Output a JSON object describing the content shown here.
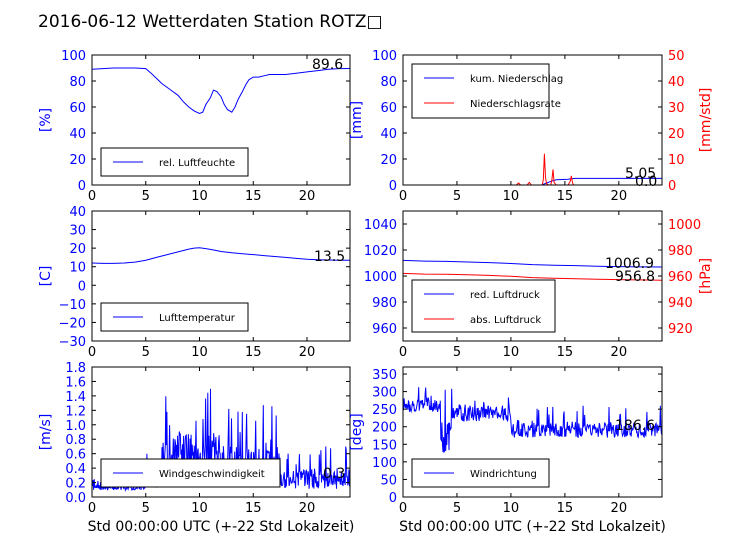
{
  "page_title": "2016-06-12 Wetterdaten Station ROTZ□",
  "colors": {
    "blue": "#0000ff",
    "red": "#ff0000",
    "black": "#000000",
    "legend_border": "#000000"
  },
  "chart_data": [
    {
      "type": "line",
      "ylabel": "[%]",
      "ylim": [
        0,
        100
      ],
      "yticks": [
        "0",
        "20",
        "40",
        "60",
        "80",
        "100"
      ],
      "xlim": [
        0,
        24
      ],
      "xticks": [
        "0",
        "5",
        "10",
        "15",
        "20"
      ],
      "xlabel": "",
      "last_value": "89.6",
      "legend_position": "lower-left",
      "series": [
        {
          "name": "rel. Luftfeuchte",
          "color": "#0000ff",
          "x": [
            0,
            1,
            2,
            3,
            4,
            5,
            5.5,
            6,
            6.5,
            7,
            7.5,
            8,
            8.5,
            9,
            9.5,
            10,
            10.3,
            10.6,
            11,
            11.3,
            11.6,
            12,
            12.3,
            12.6,
            13,
            13.3,
            13.6,
            14,
            14.3,
            14.6,
            15,
            15.5,
            16,
            16.5,
            17,
            18,
            19,
            20,
            21,
            22,
            23,
            24
          ],
          "y": [
            89,
            89.5,
            90,
            90,
            90,
            89.5,
            86,
            82,
            78,
            75,
            72,
            69,
            64,
            60,
            57,
            55,
            56,
            62,
            67,
            73,
            72,
            68,
            62,
            58,
            56,
            60,
            66,
            72,
            77,
            81,
            83,
            83,
            84,
            85,
            85,
            85,
            86,
            87,
            88,
            89,
            89.5,
            89.6
          ]
        }
      ]
    },
    {
      "type": "line",
      "ylabel": "[mm]",
      "ylabel_right": "[mm/std]",
      "ylim": [
        0,
        100
      ],
      "ylim_right": [
        0,
        50
      ],
      "yticks": [
        "0",
        "20",
        "40",
        "60",
        "80",
        "100"
      ],
      "yticks_right": [
        "0",
        "10",
        "20",
        "30",
        "40",
        "50"
      ],
      "xlim": [
        0,
        24
      ],
      "xticks": [
        "0",
        "5",
        "10",
        "15",
        "20"
      ],
      "xlabel": "",
      "last_value": "5.05",
      "last_value_right": "0.0",
      "legend_position": "upper-left",
      "series": [
        {
          "name": "kum. Niederschlag",
          "color": "#0000ff",
          "axis": "left",
          "x": [
            0,
            12.9,
            13.0,
            13.3,
            13.6,
            13.9,
            14.2,
            15.3,
            15.7,
            16,
            24
          ],
          "y": [
            0,
            0,
            0.5,
            1.5,
            2.5,
            3.3,
            4.0,
            4.4,
            4.9,
            5.05,
            5.05
          ]
        },
        {
          "name": "Niederschlagsrate",
          "color": "#ff0000",
          "axis": "right",
          "x": [
            0,
            10.5,
            10.7,
            10.9,
            11.5,
            11.7,
            11.9,
            12.9,
            13.0,
            13.1,
            13.2,
            13.3,
            13.5,
            13.7,
            13.8,
            13.9,
            14.0,
            14.2,
            14.4,
            15.3,
            15.5,
            15.6,
            15.7,
            15.8,
            16.0,
            16.5,
            24
          ],
          "y": [
            0,
            0,
            0.8,
            0,
            0,
            1.0,
            0,
            0,
            2,
            12,
            3,
            0.5,
            0,
            0,
            2,
            6,
            1,
            0,
            0,
            0,
            1.5,
            3.5,
            1,
            0,
            0,
            0,
            0
          ]
        }
      ]
    },
    {
      "type": "line",
      "ylabel": "[C]",
      "ylim": [
        -30,
        40
      ],
      "yticks": [
        "−30",
        "−20",
        "−10",
        "0",
        "10",
        "20",
        "30",
        "40"
      ],
      "xlim": [
        0,
        24
      ],
      "xticks": [
        "0",
        "5",
        "10",
        "15",
        "20"
      ],
      "xlabel": "",
      "last_value": "13.5",
      "legend_position": "lower-left",
      "series": [
        {
          "name": "Lufttemperatur",
          "color": "#0000ff",
          "x": [
            0,
            1,
            2,
            3,
            4,
            5,
            6,
            7,
            8,
            9,
            9.5,
            10,
            10.5,
            11,
            11.5,
            12,
            13,
            14,
            15,
            16,
            17,
            18,
            19,
            20,
            21,
            22,
            23,
            24
          ],
          "y": [
            12,
            11.8,
            11.8,
            12,
            12.5,
            13.5,
            15,
            16.5,
            18,
            19.5,
            20,
            20.2,
            19.8,
            19.3,
            18.8,
            18.2,
            17.5,
            17,
            16.5,
            16,
            15.5,
            15,
            14.5,
            14,
            13.8,
            13.6,
            13.5,
            13.5
          ]
        }
      ]
    },
    {
      "type": "line",
      "ylabel": "",
      "ylabel_right": "[hPa]",
      "ylim": [
        950,
        1050
      ],
      "ylim_right": [
        910,
        1010
      ],
      "yticks": [
        "960",
        "980",
        "1000",
        "1020",
        "1040"
      ],
      "yticks_right": [
        "920",
        "940",
        "960",
        "980",
        "1000"
      ],
      "xlim": [
        0,
        24
      ],
      "xticks": [
        "0",
        "5",
        "10",
        "15",
        "20"
      ],
      "xlabel": "",
      "last_value": "1006.9",
      "last_value_right": "956.8",
      "legend_position": "lower-left",
      "series": [
        {
          "name": "red. Luftdruck",
          "color": "#0000ff",
          "axis": "left",
          "x": [
            0,
            2,
            4,
            6,
            8,
            10,
            12,
            14,
            16,
            18,
            20,
            22,
            24
          ],
          "y": [
            1012,
            1011.5,
            1011.2,
            1010.8,
            1010.3,
            1009.6,
            1008.8,
            1008.3,
            1008,
            1007.5,
            1007.2,
            1007,
            1006.9
          ]
        },
        {
          "name": "abs. Luftdruck",
          "color": "#ff0000",
          "axis": "right",
          "x": [
            0,
            2,
            4,
            6,
            8,
            10,
            12,
            14,
            16,
            18,
            20,
            22,
            24
          ],
          "y": [
            962,
            961.5,
            961.3,
            961,
            960.5,
            959.8,
            958.8,
            958.2,
            957.9,
            957.5,
            957.2,
            957,
            956.8
          ]
        }
      ]
    },
    {
      "type": "line",
      "ylabel": "[m/s]",
      "ylim": [
        0,
        1.8
      ],
      "yticks": [
        "0.0",
        "0.2",
        "0.4",
        "0.6",
        "0.8",
        "1.0",
        "1.2",
        "1.4",
        "1.6",
        "1.8"
      ],
      "xlim": [
        0,
        24
      ],
      "xticks": [
        "0",
        "5",
        "10",
        "15",
        "20"
      ],
      "xlabel": "Std 00:00:00 UTC (+-22 Std Lokalzeit)",
      "last_value": "0.3",
      "legend_position": "lower-left",
      "series": [
        {
          "name": "Windgeschwindigkeit",
          "color": "#0000ff",
          "noise": {
            "seed": 7,
            "n": 480,
            "segments": [
              {
                "x0": 0,
                "x1": 5,
                "base": 0.13,
                "amp": 0.12
              },
              {
                "x0": 5,
                "x1": 6.5,
                "base": 0.25,
                "amp": 0.4
              },
              {
                "x0": 6.5,
                "x1": 12,
                "base": 0.6,
                "amp": 0.95
              },
              {
                "x0": 12,
                "x1": 17.5,
                "base": 0.45,
                "amp": 0.85
              },
              {
                "x0": 17.5,
                "x1": 24,
                "base": 0.25,
                "amp": 0.45
              }
            ]
          }
        }
      ]
    },
    {
      "type": "line",
      "ylabel": "[deg]",
      "ylim": [
        0,
        370
      ],
      "yticks": [
        "0",
        "50",
        "100",
        "150",
        "200",
        "250",
        "300",
        "350"
      ],
      "xlim": [
        0,
        24
      ],
      "xticks": [
        "0",
        "5",
        "10",
        "15",
        "20"
      ],
      "xlabel": "Std 00:00:00 UTC (+-22 Std Lokalzeit)",
      "last_value": "186.6",
      "legend_position": "lower-left",
      "series": [
        {
          "name": "Windrichtung",
          "color": "#0000ff",
          "noise": {
            "seed": 13,
            "n": 480,
            "segments": [
              {
                "x0": 0,
                "x1": 3.5,
                "base": 260,
                "amp": 60
              },
              {
                "x0": 3.5,
                "x1": 4.5,
                "base": 170,
                "amp": 150
              },
              {
                "x0": 4.5,
                "x1": 10,
                "base": 240,
                "amp": 80
              },
              {
                "x0": 10,
                "x1": 24,
                "base": 190,
                "amp": 70
              }
            ]
          }
        }
      ]
    }
  ]
}
